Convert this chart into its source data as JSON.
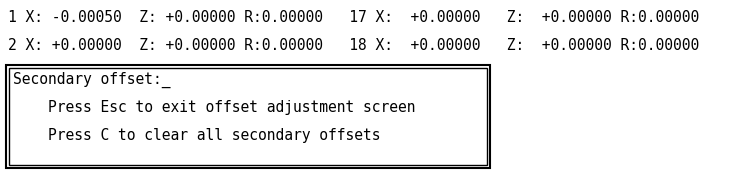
{
  "background_color": "#ffffff",
  "text_color": "#000000",
  "line1": "1 X: -0.00050  Z: +0.00000 R:0.00000   17 X:  +0.00000   Z:  +0.00000 R:0.00000",
  "line2": "2 X: +0.00000  Z: +0.00000 R:0.00000   18 X:  +0.00000   Z:  +0.00000 R:0.00000",
  "box_line1": "Secondary offset:_",
  "box_line2": "    Press Esc to exit offset adjustment screen",
  "box_line3": "    Press C to clear all secondary offsets",
  "font_family": "monospace",
  "font_size_top": 10.5,
  "font_size_box": 10.5,
  "figsize": [
    7.5,
    1.74
  ],
  "dpi": 100
}
